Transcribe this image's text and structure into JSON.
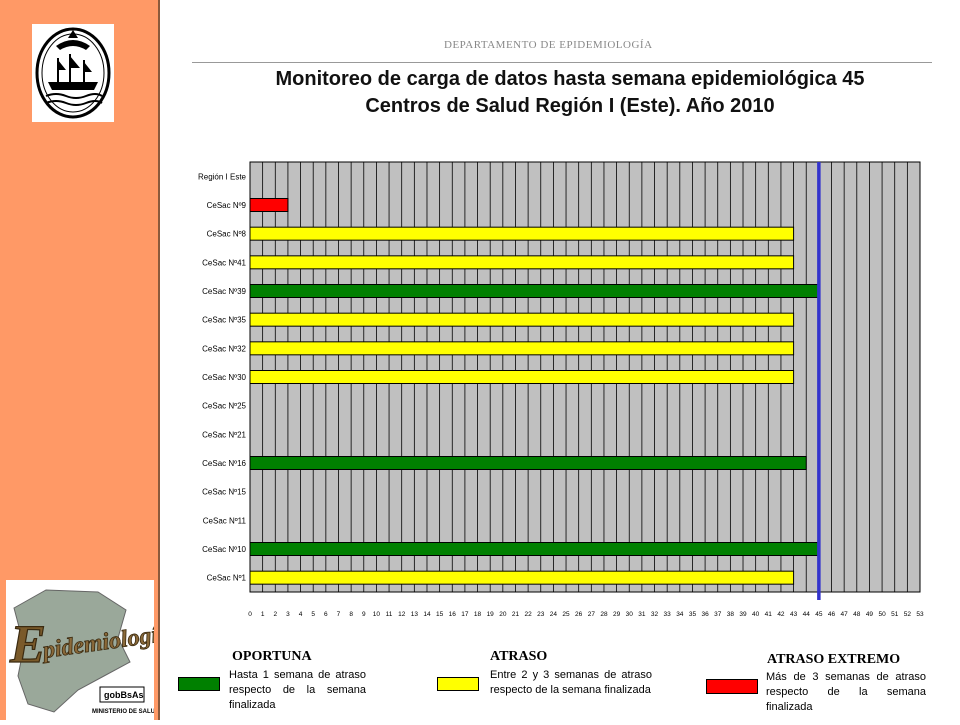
{
  "header": {
    "department": "DEPARTAMENTO  DE EPIDEMIOLOGÍA",
    "title_line1": "Monitoreo de carga de datos hasta semana epidemiológica 45",
    "title_line2": "Centros de Salud Región I (Este). Año 2010"
  },
  "logos": {
    "top_emblem": "city-coat-of-arms",
    "bottom_word": "Epidemiología",
    "bottom_badge": "gobBsAs",
    "bottom_caption": "MINISTERIO DE SALUD"
  },
  "colors": {
    "sidebar": "#FF9966",
    "oportuna": "#008000",
    "atraso": "#FFFF00",
    "atraso_extremo": "#FF0000",
    "plot_bg": "#C0C0C0",
    "marker_line": "#3333CC"
  },
  "chart_data": {
    "type": "bar",
    "orientation": "horizontal",
    "categories": [
      "Región I Este",
      "CeSac Nº9",
      "CeSac Nº8",
      "CeSac Nº41",
      "CeSac Nº39",
      "CeSac Nº35",
      "CeSac Nº32",
      "CeSac Nº30",
      "CeSac Nº25",
      "CeSac Nº21",
      "CeSac Nº16",
      "CeSac Nº15",
      "CeSac Nº11",
      "CeSac Nº10",
      "CeSac Nº1"
    ],
    "values": [
      0,
      3,
      43,
      43,
      45,
      43,
      43,
      43,
      0,
      0,
      44,
      0,
      0,
      45,
      43
    ],
    "status": [
      "none",
      "atraso_extremo",
      "atraso",
      "atraso",
      "oportuna",
      "atraso",
      "atraso",
      "atraso",
      "none",
      "none",
      "oportuna",
      "none",
      "none",
      "oportuna",
      "atraso"
    ],
    "xlim": [
      0,
      53
    ],
    "x_ticks": [
      0,
      1,
      2,
      3,
      4,
      5,
      6,
      7,
      8,
      9,
      10,
      11,
      12,
      13,
      14,
      15,
      16,
      17,
      18,
      19,
      20,
      21,
      22,
      23,
      24,
      25,
      26,
      27,
      28,
      29,
      30,
      31,
      32,
      33,
      34,
      35,
      36,
      37,
      38,
      39,
      40,
      41,
      42,
      43,
      44,
      45,
      46,
      47,
      48,
      49,
      50,
      51,
      52,
      53
    ],
    "reference_week": 45,
    "grid": true
  },
  "legend": [
    {
      "key": "oportuna",
      "title": "OPORTUNA",
      "description": "Hasta 1 semana de atraso respecto de la semana finalizada"
    },
    {
      "key": "atraso",
      "title": "ATRASO",
      "description": "Entre 2 y 3 semanas de atraso respecto de la semana finalizada"
    },
    {
      "key": "atraso_extremo",
      "title": "ATRASO EXTREMO",
      "description": "Más de 3 semanas de atraso respecto de la semana finalizada"
    }
  ]
}
